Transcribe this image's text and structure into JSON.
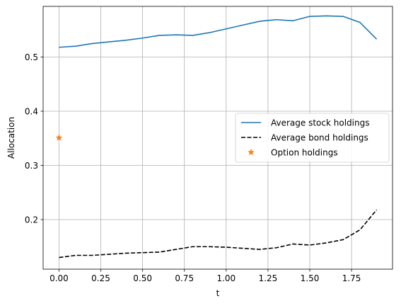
{
  "chart_data": {
    "type": "line",
    "title": "",
    "xlabel": "t",
    "ylabel": "Allocation",
    "xlim": [
      -0.095,
      1.995
    ],
    "ylim": [
      0.1085,
      0.5935
    ],
    "xticks": [
      0.0,
      0.25,
      0.5,
      0.75,
      1.0,
      1.25,
      1.5,
      1.75
    ],
    "xtick_labels": [
      "0.00",
      "0.25",
      "0.50",
      "0.75",
      "1.00",
      "1.25",
      "1.50",
      "1.75"
    ],
    "yticks": [
      0.2,
      0.3,
      0.4,
      0.5
    ],
    "ytick_labels": [
      "0.2",
      "0.3",
      "0.4",
      "0.5"
    ],
    "grid": true,
    "legend_position": "center-right",
    "series": [
      {
        "name": "Average stock holdings",
        "style": "solid",
        "color": "#1f77b4",
        "x": [
          0.0,
          0.1,
          0.2,
          0.3,
          0.4,
          0.5,
          0.6,
          0.7,
          0.8,
          0.9,
          1.0,
          1.1,
          1.2,
          1.3,
          1.4,
          1.5,
          1.6,
          1.7,
          1.8,
          1.9
        ],
        "y": [
          0.518,
          0.52,
          0.525,
          0.528,
          0.531,
          0.535,
          0.54,
          0.541,
          0.54,
          0.545,
          0.552,
          0.559,
          0.566,
          0.569,
          0.567,
          0.575,
          0.576,
          0.575,
          0.564,
          0.533
        ]
      },
      {
        "name": "Average bond holdings",
        "style": "dashed",
        "color": "#000000",
        "x": [
          0.0,
          0.1,
          0.2,
          0.3,
          0.4,
          0.5,
          0.6,
          0.7,
          0.8,
          0.9,
          1.0,
          1.1,
          1.2,
          1.3,
          1.4,
          1.5,
          1.6,
          1.7,
          1.8,
          1.9
        ],
        "y": [
          0.13,
          0.134,
          0.134,
          0.136,
          0.138,
          0.139,
          0.14,
          0.145,
          0.15,
          0.15,
          0.149,
          0.147,
          0.145,
          0.148,
          0.155,
          0.153,
          0.157,
          0.163,
          0.181,
          0.218
        ]
      },
      {
        "name": "Option holdings",
        "style": "star-marker",
        "color": "#ff7f0e",
        "x": [
          0.0
        ],
        "y": [
          0.351
        ]
      }
    ]
  }
}
